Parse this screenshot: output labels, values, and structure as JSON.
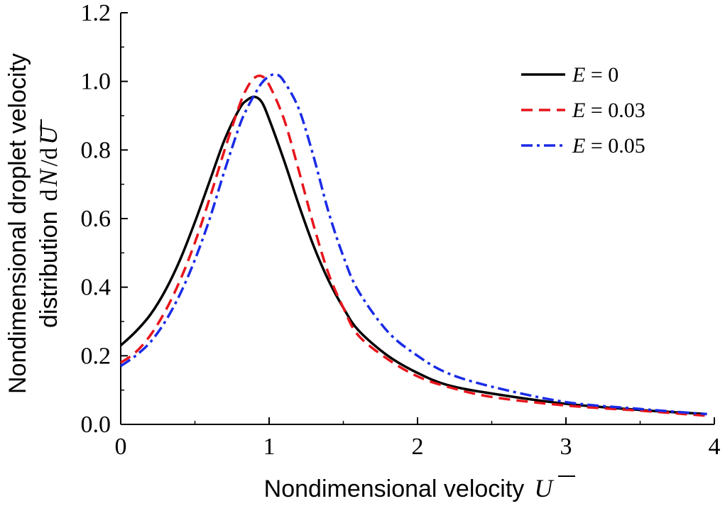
{
  "chart_data": {
    "type": "line",
    "title": "",
    "xlabel": "Nondimensional velocity",
    "xlabel_symbol": "U",
    "ylabel_line1": "Nondimensional droplet velocity",
    "ylabel_line2": "distribution",
    "ylabel_symbol_d1": "d",
    "ylabel_symbol_N": "N",
    "ylabel_symbol_sep": "/d",
    "ylabel_symbol_U": "U",
    "xlim": [
      0,
      4
    ],
    "ylim": [
      0,
      1.2
    ],
    "xticks": [
      0,
      1,
      2,
      3,
      4
    ],
    "xtick_labels": [
      "0",
      "1",
      "2",
      "3",
      "4"
    ],
    "yticks": [
      0,
      0.2,
      0.4,
      0.6,
      0.8,
      1.0,
      1.2
    ],
    "ytick_labels": [
      "0.0",
      "0.2",
      "0.4",
      "0.6",
      "0.8",
      "1.0",
      "1.2"
    ],
    "grid": false,
    "legend_position": "top-right",
    "series": [
      {
        "name": "E = 0",
        "legend_var": "E",
        "legend_value": " = 0",
        "color": "#000000",
        "style": "solid",
        "x": [
          0,
          0.1,
          0.2,
          0.3,
          0.4,
          0.5,
          0.6,
          0.7,
          0.8,
          0.85,
          0.9,
          0.95,
          1.0,
          1.1,
          1.2,
          1.3,
          1.4,
          1.5,
          1.6,
          1.8,
          2.0,
          2.2,
          2.5,
          3.0,
          3.5,
          3.95
        ],
        "y": [
          0.23,
          0.27,
          0.32,
          0.39,
          0.48,
          0.59,
          0.71,
          0.83,
          0.92,
          0.945,
          0.955,
          0.94,
          0.89,
          0.77,
          0.64,
          0.52,
          0.42,
          0.34,
          0.275,
          0.2,
          0.15,
          0.115,
          0.09,
          0.06,
          0.042,
          0.03
        ]
      },
      {
        "name": "E = 0.03",
        "legend_var": "E",
        "legend_value": " = 0.03",
        "color": "#e8141b",
        "style": "dashed",
        "x": [
          0,
          0.1,
          0.2,
          0.3,
          0.4,
          0.5,
          0.6,
          0.7,
          0.8,
          0.85,
          0.9,
          0.95,
          1.0,
          1.1,
          1.2,
          1.3,
          1.4,
          1.5,
          1.6,
          1.8,
          2.0,
          2.2,
          2.5,
          3.0,
          3.5,
          3.95
        ],
        "y": [
          0.18,
          0.21,
          0.26,
          0.33,
          0.42,
          0.53,
          0.66,
          0.8,
          0.93,
          0.98,
          1.01,
          1.015,
          0.99,
          0.89,
          0.74,
          0.58,
          0.44,
          0.34,
          0.26,
          0.19,
          0.14,
          0.11,
          0.08,
          0.055,
          0.04,
          0.025
        ]
      },
      {
        "name": "E = 0.05",
        "legend_var": "E",
        "legend_value": " = 0.05",
        "color": "#1a2be6",
        "style": "dashdot",
        "x": [
          0,
          0.1,
          0.2,
          0.3,
          0.4,
          0.5,
          0.6,
          0.7,
          0.8,
          0.85,
          0.9,
          0.95,
          1.0,
          1.05,
          1.1,
          1.2,
          1.3,
          1.4,
          1.5,
          1.6,
          1.8,
          2.0,
          2.2,
          2.5,
          3.0,
          3.5,
          3.95
        ],
        "y": [
          0.17,
          0.2,
          0.24,
          0.3,
          0.38,
          0.48,
          0.6,
          0.74,
          0.87,
          0.92,
          0.96,
          0.995,
          1.015,
          1.02,
          1.0,
          0.92,
          0.78,
          0.62,
          0.49,
          0.39,
          0.27,
          0.2,
          0.15,
          0.11,
          0.065,
          0.045,
          0.03
        ]
      }
    ]
  }
}
